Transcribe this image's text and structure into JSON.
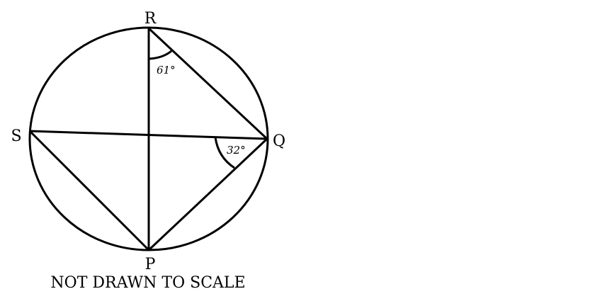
{
  "points": {
    "R": "R",
    "S": "S",
    "Q": "Q",
    "P": "P"
  },
  "angles": {
    "at_R": "61°",
    "at_Q": "32°"
  },
  "caption": "NOT DRAWN TO SCALE",
  "colors": {
    "stroke": "#000000",
    "background": "#ffffff"
  }
}
